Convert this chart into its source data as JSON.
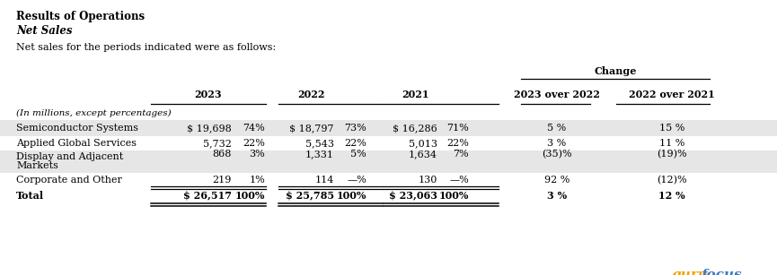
{
  "title1": "Results of Operations",
  "title2": "Net Sales",
  "subtitle": "Net sales for the periods indicated were as follows:",
  "change_header": "Change",
  "col_headers": [
    "2023",
    "2022",
    "2021",
    "2023 over 2022",
    "2022 over 2021"
  ],
  "subheader": "(In millions, except percentages)",
  "rows": [
    {
      "label": "Semiconductor Systems",
      "v2023": "$ 19,698",
      "p2023": "74%",
      "v2022": "$ 18,797",
      "p2022": "73%",
      "v2021": "$ 16,286",
      "p2021": "71%",
      "c1": "5 %",
      "c2": "15 %",
      "shaded": true,
      "is_total": false,
      "two_line": false
    },
    {
      "label": "Applied Global Services",
      "v2023": "5,732",
      "p2023": "22%",
      "v2022": "5,543",
      "p2022": "22%",
      "v2021": "5,013",
      "p2021": "22%",
      "c1": "3 %",
      "c2": "11 %",
      "shaded": false,
      "is_total": false,
      "two_line": false
    },
    {
      "label": "Display and Adjacent\nMarkets",
      "v2023": "868",
      "p2023": "3%",
      "v2022": "1,331",
      "p2022": "5%",
      "v2021": "1,634",
      "p2021": "7%",
      "c1": "(35)%",
      "c2": "(19)%",
      "shaded": true,
      "is_total": false,
      "two_line": true
    },
    {
      "label": "Corporate and Other",
      "v2023": "219",
      "p2023": "1%",
      "v2022": "114",
      "p2022": "—%",
      "v2021": "130",
      "p2021": "—%",
      "c1": "92 %",
      "c2": "(12)%",
      "shaded": false,
      "is_total": false,
      "two_line": false
    },
    {
      "label": "Total",
      "v2023": "$ 26,517",
      "p2023": "100%",
      "v2022": "$ 25,785",
      "p2022": "100%",
      "v2021": "$ 23,063",
      "p2021": "100%",
      "c1": "3 %",
      "c2": "12 %",
      "shaded": false,
      "is_total": true,
      "two_line": false
    }
  ],
  "bg_color": "#ffffff",
  "shade_color": "#e6e6e6",
  "text_color": "#000000",
  "line_color": "#000000",
  "gurufocus_orange": "#f5a000",
  "gurufocus_blue": "#3a7abf",
  "fig_width": 8.65,
  "fig_height": 3.07,
  "dpi": 100
}
